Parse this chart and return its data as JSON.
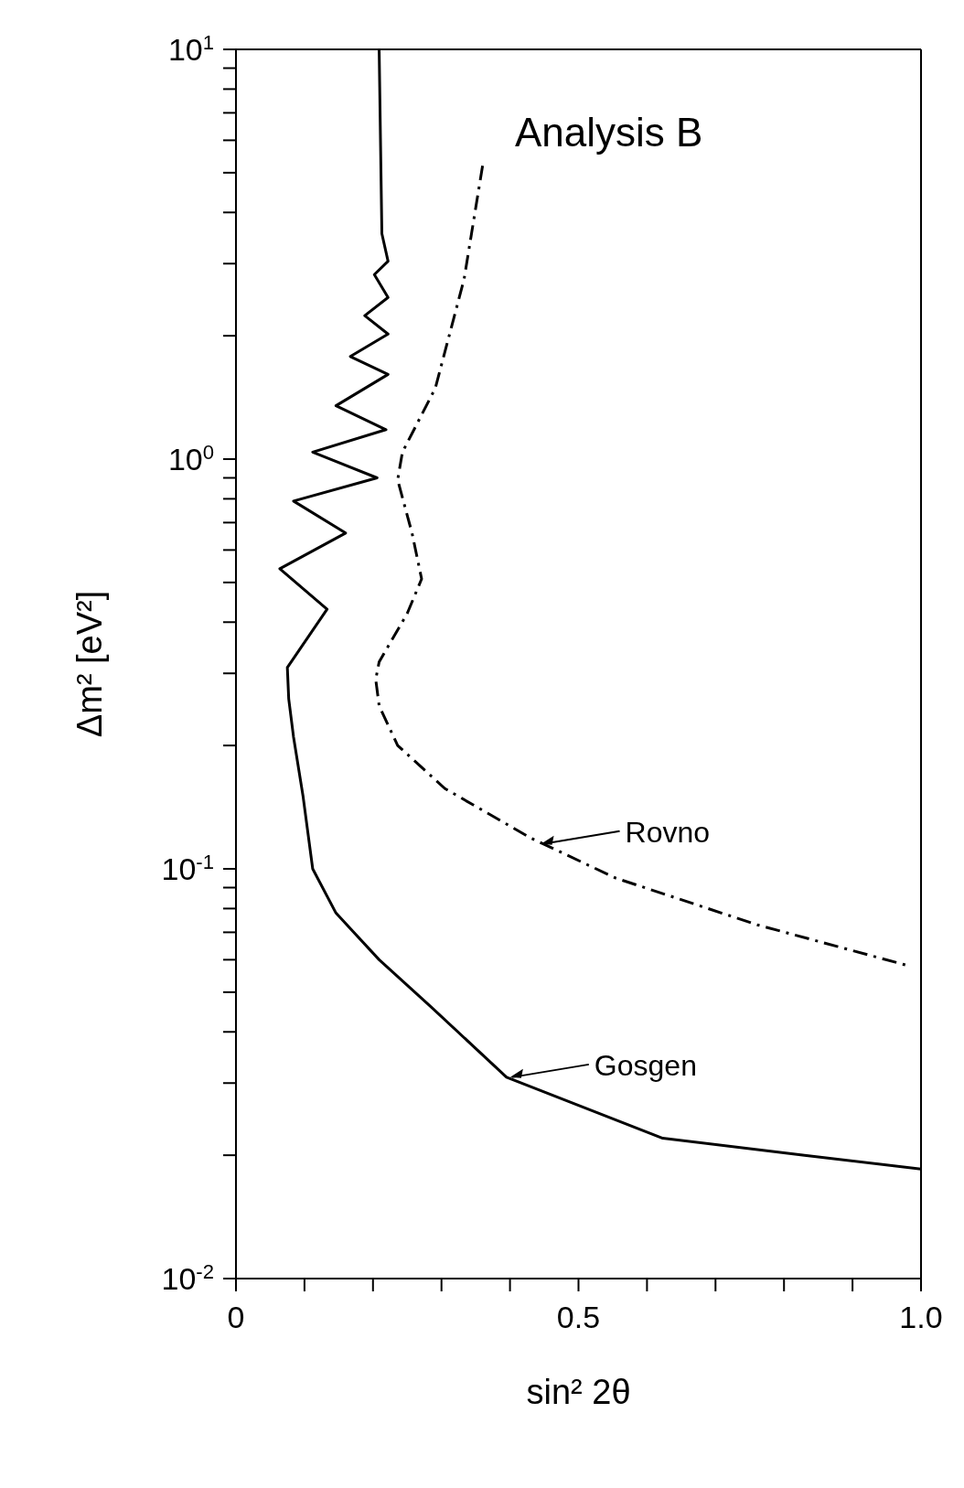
{
  "chart_data": {
    "type": "line",
    "xlabel": "sin² 2θ",
    "ylabel": "Δm² [eV²]",
    "log": "y",
    "marker": "none",
    "xlim": [
      0,
      1
    ],
    "ylim": [
      0.01,
      10
    ],
    "xticks": [
      0,
      {
        "value": 0.1,
        "label": null
      },
      {
        "value": 0.2,
        "label": null
      },
      {
        "value": 0.3,
        "label": null
      },
      {
        "value": 0.4,
        "label": null
      },
      0.5,
      {
        "value": 0.6,
        "label": null
      },
      {
        "value": 0.7,
        "label": null
      },
      {
        "value": 0.8,
        "label": null
      },
      {
        "value": 0.9,
        "label": null
      },
      {
        "value": 1,
        "label": "1.0"
      }
    ],
    "yticks": [
      {
        "value": 0.01,
        "label": "10$^{-2}$"
      },
      {
        "value": 0.02,
        "label": null
      },
      {
        "value": 0.03,
        "label": null
      },
      {
        "value": 0.04,
        "label": null
      },
      {
        "value": 0.05,
        "label": null
      },
      {
        "value": 0.06,
        "label": null
      },
      {
        "value": 0.07,
        "label": null
      },
      {
        "value": 0.08,
        "label": null
      },
      {
        "value": 0.09,
        "label": null
      },
      {
        "value": 0.1,
        "label": "10$^{-1}$"
      },
      {
        "value": 0.2,
        "label": null
      },
      {
        "value": 0.3,
        "label": null
      },
      {
        "value": 0.4,
        "label": null
      },
      {
        "value": 0.5,
        "label": null
      },
      {
        "value": 0.6,
        "label": null
      },
      {
        "value": 0.7,
        "label": null
      },
      {
        "value": 0.8,
        "label": null
      },
      {
        "value": 0.9,
        "label": null
      },
      {
        "value": 1,
        "label": "10$^{0}$"
      },
      {
        "value": 2,
        "label": null
      },
      {
        "value": 3,
        "label": null
      },
      {
        "value": 4,
        "label": null
      },
      {
        "value": 5,
        "label": null
      },
      {
        "value": 6,
        "label": null
      },
      {
        "value": 7,
        "label": null
      },
      {
        "value": 8,
        "label": null
      },
      {
        "value": 9,
        "label": null
      },
      {
        "value": 10,
        "label": "10$^{1}$"
      }
    ],
    "series": [
      {
        "color": "#000000",
        "line_style": "solid",
        "x": [
          0.209,
          0.213,
          0.222,
          0.202,
          0.222,
          0.188,
          0.222,
          0.167,
          0.222,
          0.146,
          0.219,
          0.112,
          0.206,
          0.084,
          0.16,
          0.064,
          0.133,
          0.075,
          0.077,
          0.084,
          0.098,
          0.112,
          0.146,
          0.209,
          0.285,
          0.395,
          0.623,
          0.83,
          1.0
        ],
        "values": [
          10,
          3.55,
          3.04,
          2.82,
          2.48,
          2.24,
          2.02,
          1.78,
          1.61,
          1.35,
          1.18,
          1.04,
          0.9,
          0.79,
          0.66,
          0.54,
          0.43,
          0.31,
          0.26,
          0.21,
          0.15,
          0.1,
          0.078,
          0.06,
          0.046,
          0.031,
          0.022,
          0.02,
          0.0185
        ]
      },
      {
        "color": "#000000",
        "line_style": "dashdot",
        "x": [
          0.36,
          0.333,
          0.291,
          0.243,
          0.236,
          0.257,
          0.271,
          0.25,
          0.209,
          0.204,
          0.209,
          0.236,
          0.305,
          0.43,
          0.554,
          0.761,
          0.982
        ],
        "values": [
          5.2,
          2.75,
          1.49,
          1.04,
          0.89,
          0.66,
          0.51,
          0.42,
          0.32,
          0.29,
          0.25,
          0.2,
          0.157,
          0.119,
          0.095,
          0.073,
          0.058
        ]
      }
    ],
    "annotations": [
      "Analysis B",
      {
        "text": "Rovno",
        "x": 0.44,
        "y": 0.115
      },
      {
        "text": "Gosgen",
        "x": 0.395,
        "y": 0.031
      }
    ]
  }
}
